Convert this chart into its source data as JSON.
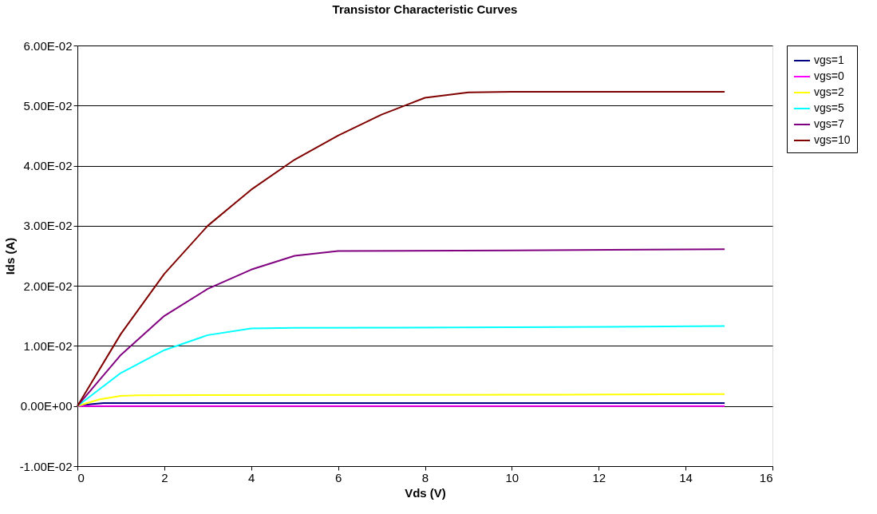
{
  "chart_data": {
    "type": "line",
    "title": "Transistor Characteristic Curves",
    "xlabel": "Vds (V)",
    "ylabel": "Ids (A)",
    "xlim": [
      0,
      16
    ],
    "xticks": [
      0,
      2,
      4,
      6,
      8,
      10,
      12,
      14,
      16
    ],
    "ylim": [
      -0.01,
      0.06
    ],
    "yticks": [
      {
        "value": -0.01,
        "label": "-1.00E-02"
      },
      {
        "value": 0,
        "label": "0.00E+00"
      },
      {
        "value": 0.01,
        "label": "1.00E-02"
      },
      {
        "value": 0.02,
        "label": "2.00E-02"
      },
      {
        "value": 0.03,
        "label": "3.00E-02"
      },
      {
        "value": 0.04,
        "label": "4.00E-02"
      },
      {
        "value": 0.05,
        "label": "5.00E-02"
      },
      {
        "value": 0.06,
        "label": "6.00E-02"
      }
    ],
    "grid": "y",
    "legend": "right",
    "marker": "none",
    "line_style": "solid",
    "series": [
      {
        "name": "vgs=1",
        "color": "#000080",
        "x": [
          0,
          0.3,
          0.6,
          1,
          14.9
        ],
        "values": [
          0,
          0.0003,
          0.0005,
          0.0005,
          0.0005
        ]
      },
      {
        "name": "vgs=0",
        "color": "#ff00ff",
        "x": [
          0,
          14.9
        ],
        "values": [
          0,
          0
        ]
      },
      {
        "name": "vgs=2",
        "color": "#ffff00",
        "x": [
          0,
          0.5,
          1,
          1.4,
          11.3,
          14.9
        ],
        "values": [
          0,
          0.0011,
          0.0017,
          0.0018,
          0.0019,
          0.002
        ]
      },
      {
        "name": "vgs=5",
        "color": "#00ffff",
        "x": [
          0,
          1,
          2,
          3,
          4,
          5,
          10,
          14.9
        ],
        "values": [
          0,
          0.0055,
          0.0093,
          0.0118,
          0.0129,
          0.013,
          0.0131,
          0.0133
        ]
      },
      {
        "name": "vgs=7",
        "color": "#800080",
        "x": [
          0,
          1,
          2,
          3,
          4,
          5,
          6,
          10,
          14.9
        ],
        "values": [
          0,
          0.0085,
          0.015,
          0.0195,
          0.0227,
          0.025,
          0.0258,
          0.0259,
          0.0261
        ]
      },
      {
        "name": "vgs=10",
        "color": "#800000",
        "x": [
          0,
          1,
          2,
          3,
          4,
          5,
          6,
          7,
          8,
          9,
          10,
          14.9
        ],
        "values": [
          0,
          0.012,
          0.022,
          0.03,
          0.036,
          0.041,
          0.045,
          0.0485,
          0.0513,
          0.0522,
          0.0523,
          0.0523
        ]
      }
    ]
  }
}
